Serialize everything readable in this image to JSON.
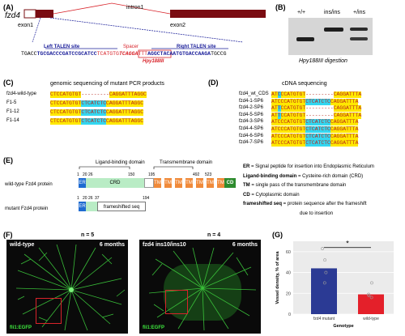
{
  "panels": {
    "A": "(A)",
    "B": "(B)",
    "C": "(C)",
    "D": "(D)",
    "E": "(E)",
    "F": "(F)",
    "G": "(G)"
  },
  "panelA": {
    "gene": "fzd4",
    "intron": "intron1",
    "exon1": "exon1",
    "exon2": "exon2",
    "left_talen": "Left TALEN site",
    "spacer": "Spacer",
    "right_talen": "Right TALEN site",
    "enzyme": "Hpy188III",
    "seq": [
      {
        "text": "TGACC",
        "style": "plain"
      },
      {
        "text": "TGCGACCCGATCCGCATCC",
        "style": "left"
      },
      {
        "text": "TCATGTG",
        "style": "spacer"
      },
      {
        "text": "TCAGGA",
        "style": "site"
      },
      {
        "text": "TTT",
        "style": "spacer"
      },
      {
        "text": "AGGCTACAATGTGACCAAGA",
        "style": "right"
      },
      {
        "text": "TGCCG",
        "style": "plain"
      }
    ],
    "colors": {
      "exon": "#7a0c12",
      "talen": "#1b1f9a",
      "spacer": "#d8232a"
    }
  },
  "panelB": {
    "lanes": [
      "+/+",
      "ins/ins",
      "+/ins"
    ],
    "caption": "Hpy188III digestion"
  },
  "panelC": {
    "title": "genomic sequencing of mutant PCR products",
    "rows": [
      {
        "name": "fzd4-wild-type",
        "seq": [
          [
            "CTCCATGTGT",
            "yel"
          ],
          [
            "---------",
            "gap"
          ],
          [
            "CAGGATTTAGGC",
            "yel"
          ]
        ]
      },
      {
        "name": "F1-5",
        "seq": [
          [
            "CTCCATGTGT",
            "yel"
          ],
          [
            "CTCATCTC",
            "cya"
          ],
          [
            "CAGGATTTAGGC",
            "yel"
          ]
        ]
      },
      {
        "name": "F1-12",
        "seq": [
          [
            "CTCCATGTGT",
            "yel"
          ],
          [
            "CTCATCTC",
            "cya"
          ],
          [
            "CAGGATTTAGGC",
            "yel"
          ]
        ]
      },
      {
        "name": "F1-14",
        "seq": [
          [
            "CTCCATGTGT",
            "yel"
          ],
          [
            "CTCATCTC",
            "cya"
          ],
          [
            "CAGGATTTAGGC",
            "yel"
          ]
        ]
      }
    ]
  },
  "panelD": {
    "title": "cDNA sequencing",
    "rows": [
      {
        "name": "fzd4_wt_CDS",
        "seq": [
          [
            "AT",
            "yel"
          ],
          [
            "C",
            "cya"
          ],
          [
            "CCATGTGT",
            "yel"
          ],
          [
            "---------",
            "gap"
          ],
          [
            "CAGGATTTA",
            "yel"
          ]
        ]
      },
      {
        "name": "fzd4-1-SP6",
        "seq": [
          [
            "ATC",
            "yel"
          ],
          [
            "CCATGTGT",
            "yel"
          ],
          [
            "CTCATCTC",
            "cya"
          ],
          [
            "CAGGATTTA",
            "yel"
          ]
        ]
      },
      {
        "name": "fzd4-2-SP6",
        "seq": [
          [
            "AT",
            "yel"
          ],
          [
            "T",
            "cya"
          ],
          [
            "CCATGTGT",
            "yel"
          ],
          [
            "---------",
            "gap"
          ],
          [
            "CAGGATTTA",
            "yel"
          ]
        ]
      },
      {
        "name": "fzd4-5-SP6",
        "seq": [
          [
            "AT",
            "yel"
          ],
          [
            "T",
            "cya"
          ],
          [
            "CCATGTGT",
            "yel"
          ],
          [
            "---------",
            "gap"
          ],
          [
            "CAGGATTTA",
            "yel"
          ]
        ]
      },
      {
        "name": "fzd4-3-SP6",
        "seq": [
          [
            "ATC",
            "yel"
          ],
          [
            "CCATGTGT",
            "yel"
          ],
          [
            "CTCATCTC",
            "cya"
          ],
          [
            "CAGGATTTA",
            "yel"
          ]
        ]
      },
      {
        "name": "fzd4-4-SP6",
        "seq": [
          [
            "ATC",
            "yel"
          ],
          [
            "CCATGTGT",
            "yel"
          ],
          [
            "CTCATCTC",
            "cya"
          ],
          [
            "CAGGATTTA",
            "yel"
          ]
        ]
      },
      {
        "name": "fzd4-6-SP6",
        "seq": [
          [
            "ATC",
            "yel"
          ],
          [
            "CCATGTGT",
            "yel"
          ],
          [
            "CTCATCTC",
            "cya"
          ],
          [
            "CAGGATTTA",
            "yel"
          ]
        ]
      },
      {
        "name": "fzd4-7-SP6",
        "seq": [
          [
            "ATC",
            "yel"
          ],
          [
            "CCATGTGT",
            "yel"
          ],
          [
            "CTCATCTC",
            "cya"
          ],
          [
            "CAGGATTTA",
            "yel"
          ]
        ]
      }
    ]
  },
  "panelE": {
    "lbd_label": "Ligand-binding domain",
    "tmd_label": "Transmembrane domain",
    "wt_label": "wild-type Fzd4 protein",
    "mut_label": "mutant Fzd4 protein",
    "wt_numbers": [
      "1",
      "20",
      "26",
      "150",
      "195",
      "492",
      "523"
    ],
    "mut_numbers": [
      "1",
      "20",
      "26",
      "37",
      "194"
    ],
    "er": "ER",
    "crd": "CRD",
    "tm": "TM",
    "cd": "CD",
    "frameshift": "frameshifted seq",
    "legend": [
      {
        "key": "ER",
        "text": " = Signal peptide for insertion into Endoplasmic Reticulum"
      },
      {
        "key": "Ligand-binding domain",
        "text": " = Cysteine-rich domain (CRD)"
      },
      {
        "key": "TM",
        "text": " = single pass of the transmembrane domain"
      },
      {
        "key": "CD",
        "text": " = Cytoplasmic domain"
      },
      {
        "key": "frameshifted seq",
        "text": " = protein sequence after the frameshift"
      },
      {
        "key": "",
        "text": "due to insertion"
      }
    ]
  },
  "panelF": {
    "left": {
      "n": "n = 5",
      "title": "wild-type",
      "age": "6 months",
      "marker": "fli1:EGFP"
    },
    "right": {
      "n": "n = 4",
      "title": "fzd4 ins10/ins10",
      "age": "6 months",
      "marker": "fli1:EGFP"
    }
  },
  "chart_data": {
    "type": "bar",
    "categories": [
      "fzd4 mutant",
      "wild-type"
    ],
    "values": [
      44,
      19
    ],
    "points": [
      [
        63,
        52,
        40,
        30
      ],
      [
        30,
        19,
        18,
        16
      ]
    ],
    "xlabel": "Genotype",
    "ylabel": "Vessel density, % of area",
    "ylim": [
      0,
      70
    ],
    "yticks": [
      0,
      20,
      40,
      60
    ],
    "significance": "*",
    "colors": {
      "mutant": "#2b3a94",
      "wildtype": "#e4202a"
    }
  }
}
